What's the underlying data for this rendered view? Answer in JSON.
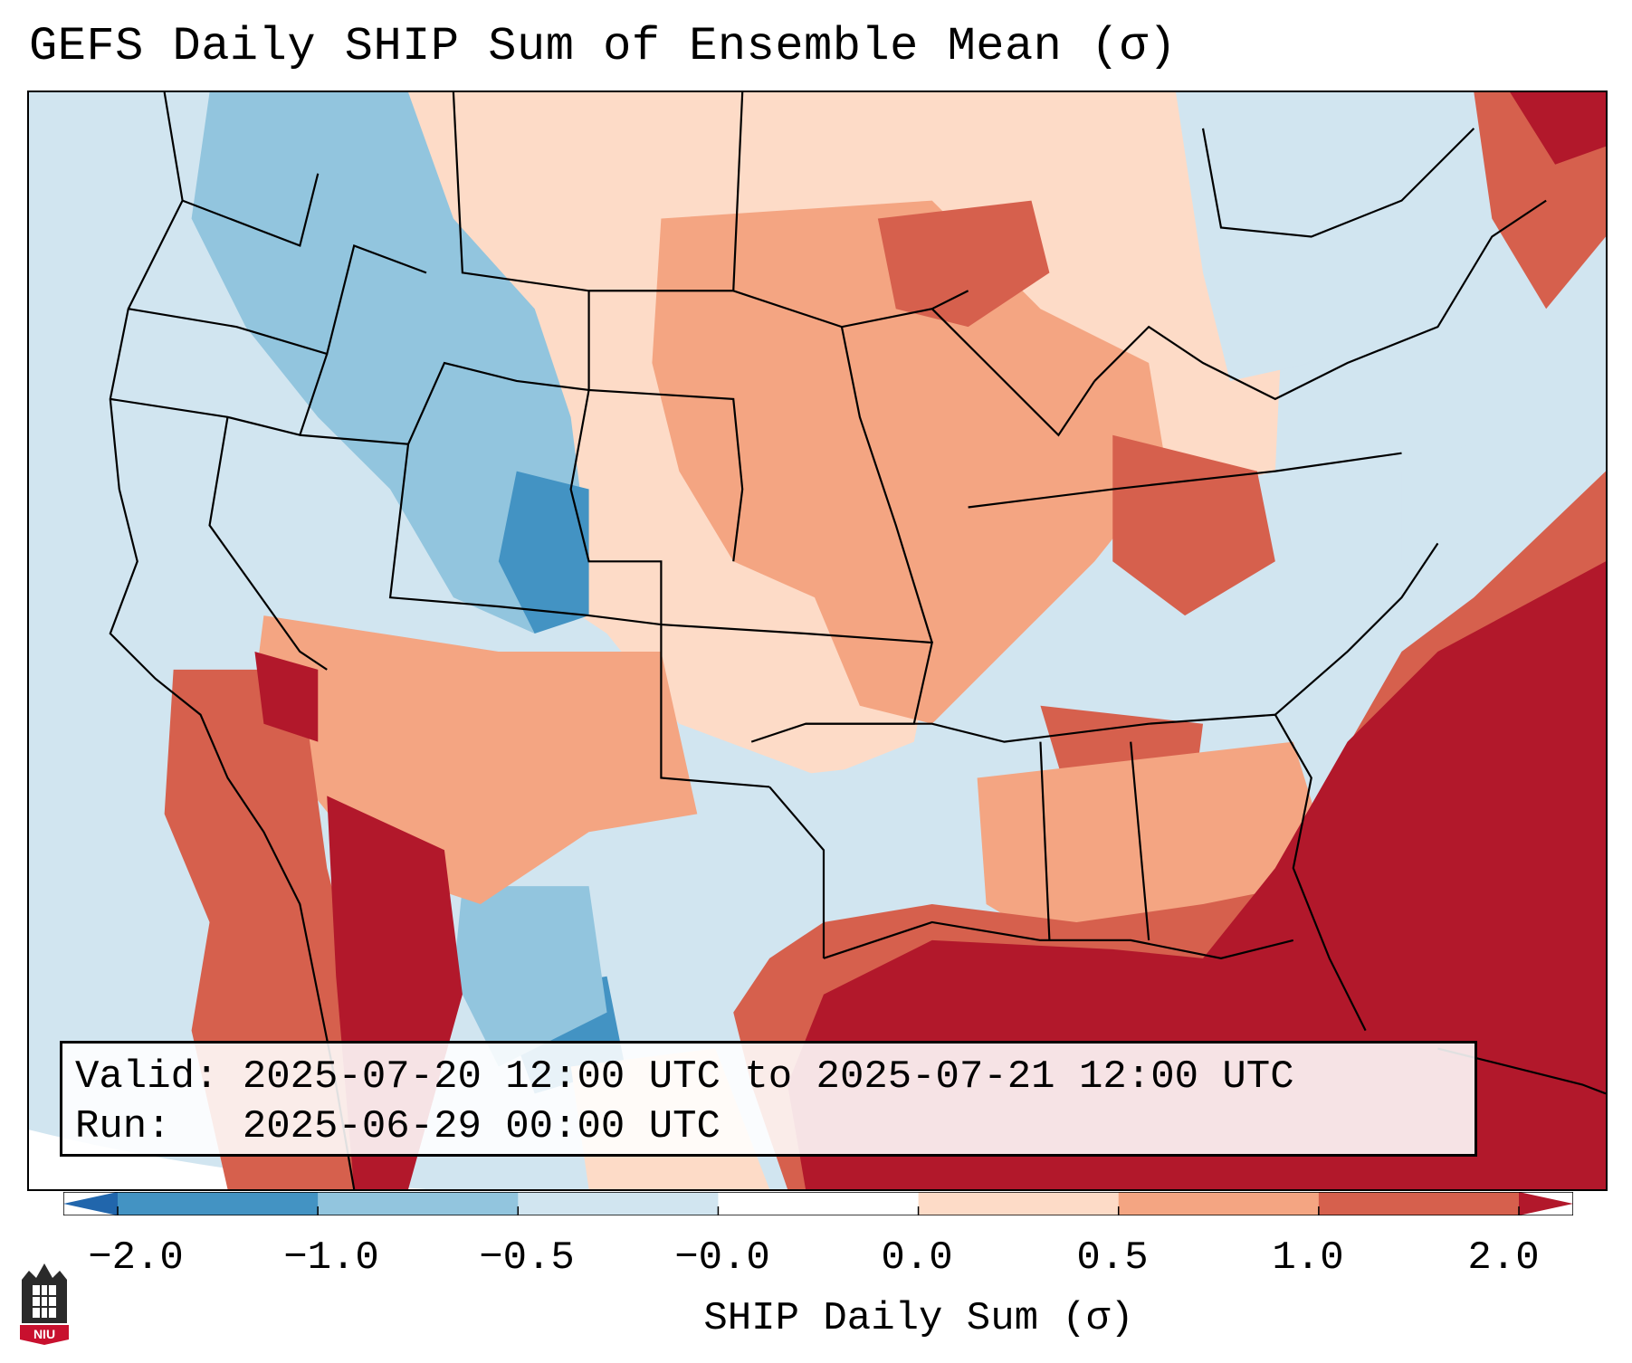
{
  "title": "GEFS Daily SHIP Sum of Ensemble Mean (σ)",
  "info": {
    "valid_line": "Valid: 2025-07-20 12:00 UTC to 2025-07-21 12:00 UTC",
    "run_line": "Run:   2025-06-29 00:00 UTC"
  },
  "colorbar": {
    "label": "SHIP Daily Sum (σ)",
    "ticks": [
      "−2.0",
      "−1.0",
      "−0.5",
      "−0.0",
      "0.0",
      "0.5",
      "1.0",
      "2.0"
    ],
    "bin_colors": [
      "#2166ac",
      "#4393c3",
      "#92c5de",
      "#d1e5f0",
      "#ffffff",
      "#fddbc7",
      "#f4a582",
      "#d6604d",
      "#b2182b"
    ]
  },
  "logo": {
    "text": "NIU"
  },
  "legend_colors": {
    "strong_negative": "#4393c3",
    "negative": "#92c5de",
    "weak_negative": "#d1e5f0",
    "weak_positive": "#fddbc7",
    "positive": "#f4a582",
    "strong_positive": "#d6604d",
    "extreme_positive": "#b2182b"
  }
}
